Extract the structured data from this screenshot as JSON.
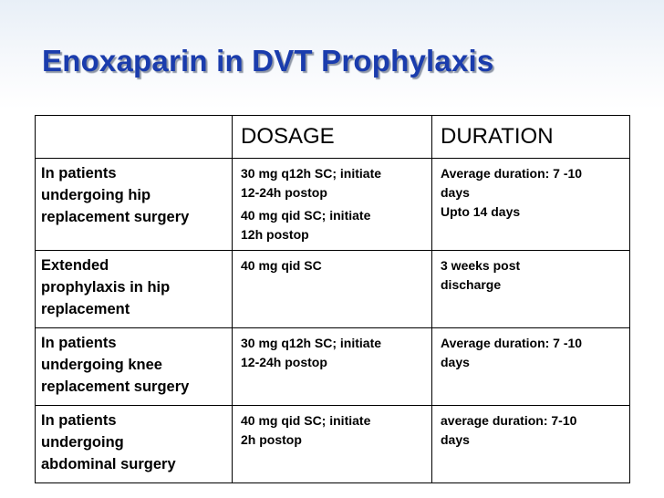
{
  "title": "Enoxaparin in DVT Prophylaxis",
  "table": {
    "headers": [
      "",
      "DOSAGE",
      "DURATION"
    ],
    "rows": [
      {
        "indication": [
          "In patients",
          "undergoing hip",
          "replacement surgery"
        ],
        "dosage": [
          "30 mg q12h SC; initiate",
          "12-24h postop",
          "40 mg qid SC; initiate",
          "12h postop"
        ],
        "duration": [
          "Average duration: 7 -10",
          "days",
          "Upto 14 days"
        ]
      },
      {
        "indication": [
          "Extended",
          "prophylaxis in hip",
          "replacement"
        ],
        "dosage": [
          "40 mg qid SC"
        ],
        "duration": [
          "3 weeks post",
          "discharge"
        ]
      },
      {
        "indication": [
          "In patients",
          "undergoing knee",
          "replacement surgery"
        ],
        "dosage": [
          "30 mg q12h SC; initiate",
          "12-24h postop"
        ],
        "duration": [
          "Average duration: 7 -10",
          "days"
        ]
      },
      {
        "indication": [
          "In patients",
          "undergoing",
          "abdominal surgery"
        ],
        "dosage": [
          "40 mg qid SC; initiate",
          "2h postop"
        ],
        "duration": [
          "average duration: 7-10",
          "days"
        ]
      }
    ]
  }
}
